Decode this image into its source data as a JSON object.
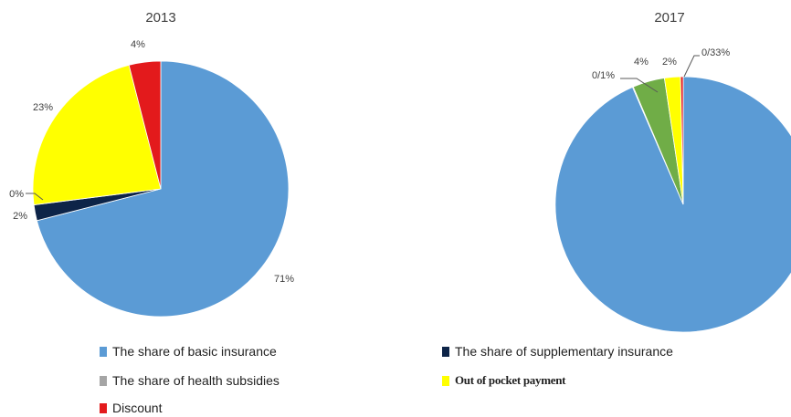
{
  "chart_data": [
    {
      "type": "pie",
      "title": "2013",
      "series": [
        {
          "name": "The share of basic insurance",
          "value": 71,
          "label": "71%",
          "color": "#5b9bd5"
        },
        {
          "name": "The share of supplementary insurance",
          "value": 2,
          "label": "2%",
          "color": "#0d2448"
        },
        {
          "name": "The share of health subsidies",
          "value": 0,
          "label": "0%",
          "color": "#a5a5a5"
        },
        {
          "name": "Out of pocket payment",
          "value": 23,
          "label": "23%",
          "color": "#ffff00"
        },
        {
          "name": "Discount",
          "value": 4,
          "label": "4%",
          "color": "#e31a1c"
        }
      ]
    },
    {
      "type": "pie",
      "title": "2017",
      "series": [
        {
          "name": "The share of basic insurance",
          "value": 92.67,
          "label": "",
          "color": "#5b9bd5"
        },
        {
          "name": "The share of supplementary insurance",
          "value": 0.1,
          "label": "0/1%",
          "color": "#0d2448"
        },
        {
          "name": "The share of health subsidies",
          "value": 4,
          "label": "4%",
          "color": "#70ad47"
        },
        {
          "name": "Out of pocket payment",
          "value": 2,
          "label": "2%",
          "color": "#ffff00"
        },
        {
          "name": "Discount",
          "value": 0.33,
          "label": "0/33%",
          "color": "#e31a1c"
        }
      ]
    }
  ],
  "legend": [
    {
      "label": "The share of basic insurance",
      "color": "#5b9bd5"
    },
    {
      "label": "The share of supplementary insurance",
      "color": "#0d2448"
    },
    {
      "label": "The share of health subsidies",
      "color": "#a5a5a5"
    },
    {
      "label": "Out of pocket payment",
      "color": "#ffff00"
    },
    {
      "label": "Discount",
      "color": "#e31a1c"
    }
  ]
}
